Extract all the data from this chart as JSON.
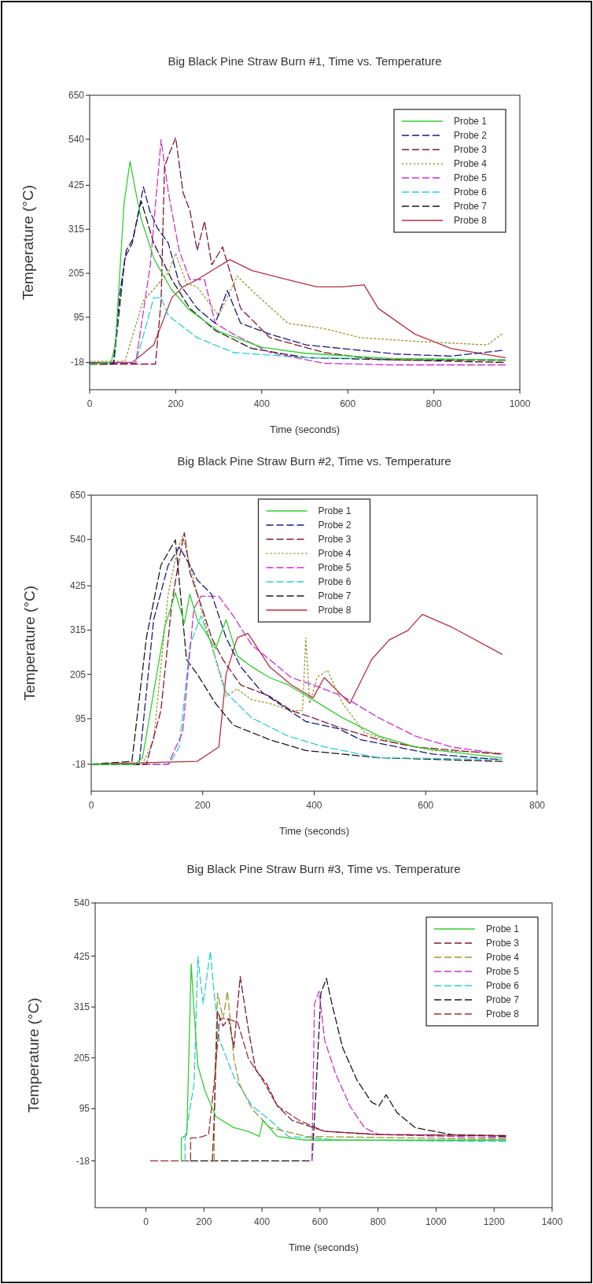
{
  "chart_data": [
    {
      "type": "line",
      "title": "Big Black Pine Straw Burn #1, Time vs. Temperature",
      "xlabel": "Time (seconds)",
      "ylabel": "Temperature (°C)",
      "xlim": [
        0,
        1000
      ],
      "ylim": [
        -86,
        650
      ],
      "xticks": [
        0,
        200,
        400,
        600,
        800,
        1000
      ],
      "yticks": [
        -18,
        95,
        205,
        315,
        425,
        540,
        650
      ],
      "legend": "top right",
      "series": [
        {
          "name": "Probe 1",
          "color": "#33cc33",
          "line_style": "solid",
          "x": [
            0,
            50,
            60,
            80,
            94,
            105,
            120,
            150,
            190,
            230,
            300,
            400,
            500,
            700,
            965
          ],
          "values": [
            -22,
            -18,
            30,
            380,
            485,
            420,
            340,
            240,
            165,
            115,
            60,
            20,
            5,
            -8,
            -12
          ]
        },
        {
          "name": "Probe 2",
          "color": "#1a1a80",
          "line_style": "dashed",
          "x": [
            0,
            56,
            82,
            99,
            125,
            140,
            158,
            183,
            208,
            250,
            292,
            320,
            351,
            419,
            503,
            587,
            714,
            840,
            958
          ],
          "values": [
            -20,
            -20,
            244,
            280,
            421,
            360,
            317,
            280,
            180,
            117,
            80,
            162,
            80,
            53,
            26,
            17,
            3,
            -2,
            12
          ]
        },
        {
          "name": "Probe 3",
          "color": "#801a33",
          "line_style": "dashed",
          "x": [
            0,
            153,
            166,
            174,
            183,
            200,
            217,
            233,
            250,
            267,
            284,
            309,
            334,
            351,
            419,
            545,
            671,
            966
          ],
          "values": [
            -22,
            -22,
            135,
            471,
            498,
            544,
            407,
            362,
            262,
            335,
            226,
            271,
            180,
            117,
            44,
            7,
            -11,
            -13
          ]
        },
        {
          "name": "Probe 4",
          "color": "#999933",
          "line_style": "dotted",
          "x": [
            0,
            82,
            124,
            183,
            200,
            225,
            250,
            300,
            343,
            377,
            461,
            545,
            629,
            756,
            924,
            958
          ],
          "values": [
            -15,
            -15,
            135,
            207,
            255,
            180,
            171,
            99,
            198,
            162,
            80,
            67,
            44,
            35,
            26,
            53
          ]
        },
        {
          "name": "Probe 5",
          "color": "#cc33cc",
          "line_style": "dashed",
          "x": [
            0,
            107,
            141,
            166,
            183,
            208,
            233,
            267,
            292,
            334,
            419,
            545,
            700,
            966
          ],
          "values": [
            -20,
            -20,
            226,
            539,
            407,
            262,
            189,
            189,
            80,
            53,
            7,
            -20,
            -24,
            -24
          ]
        },
        {
          "name": "Probe 6",
          "color": "#33cccc",
          "line_style": "dashed",
          "x": [
            0,
            107,
            149,
            166,
            183,
            250,
            334,
            503,
            966
          ],
          "values": [
            -20,
            -20,
            144,
            144,
            99,
            44,
            7,
            -6,
            -11
          ]
        },
        {
          "name": "Probe 7",
          "color": "#1a1a1a",
          "line_style": "dashed",
          "x": [
            0,
            55,
            70,
            85,
            100,
            120,
            149,
            191,
            233,
            292,
            377,
            503,
            961
          ],
          "values": [
            -22,
            -22,
            153,
            262,
            289,
            385,
            280,
            189,
            117,
            62,
            17,
            -6,
            -18
          ]
        },
        {
          "name": "Probe 8",
          "color": "#b33040",
          "line_style": "solid",
          "x": [
            0,
            99,
            149,
            191,
            217,
            250,
            292,
            326,
            377,
            461,
            528,
            587,
            638,
            671,
            756,
            840,
            966
          ],
          "values": [
            -18,
            -18,
            26,
            144,
            171,
            189,
            217,
            239,
            212,
            189,
            171,
            171,
            176,
            117,
            53,
            17,
            -6
          ]
        }
      ]
    },
    {
      "type": "line",
      "title": "Big Black Pine Straw Burn #2, Time vs. Temperature",
      "xlabel": "Time (seconds)",
      "ylabel": "Temperature (°C)",
      "xlim": [
        0,
        800
      ],
      "ylim": [
        -85,
        650
      ],
      "xticks": [
        0,
        200,
        400,
        600,
        800
      ],
      "yticks": [
        -18,
        95,
        205,
        315,
        425,
        540,
        650
      ],
      "legend": "top",
      "series": [
        {
          "name": "Probe 1",
          "color": "#33cc33",
          "line_style": "solid",
          "x": [
            0,
            79,
            92,
            112,
            132,
            151,
            167,
            177,
            190,
            203,
            223,
            242,
            262,
            288,
            320,
            353,
            398,
            451,
            516,
            581,
            646,
            737
          ],
          "values": [
            -18,
            -18,
            -2,
            160,
            323,
            408,
            332,
            404,
            341,
            314,
            269,
            341,
            251,
            224,
            197,
            179,
            142,
            97,
            52,
            25,
            12,
            -2
          ]
        },
        {
          "name": "Probe 2",
          "color": "#1a1a80",
          "line_style": "dashed",
          "x": [
            0,
            86,
            112,
            138,
            158,
            177,
            190,
            216,
            242,
            268,
            307,
            346,
            385,
            444,
            483,
            548,
            613,
            729
          ],
          "values": [
            -18,
            -18,
            341,
            476,
            521,
            476,
            440,
            404,
            296,
            224,
            160,
            124,
            88,
            70,
            43,
            25,
            7,
            -6
          ]
        },
        {
          "name": "Probe 3",
          "color": "#801a33",
          "line_style": "dashed",
          "x": [
            0,
            99,
            125,
            145,
            158,
            167,
            177,
            197,
            216,
            236,
            268,
            320,
            359,
            398,
            451,
            516,
            581,
            732
          ],
          "values": [
            -18,
            -18,
            115,
            386,
            494,
            557,
            458,
            377,
            296,
            242,
            179,
            151,
            115,
            97,
            70,
            43,
            25,
            7
          ]
        },
        {
          "name": "Probe 4",
          "color": "#999933",
          "line_style": "dotted",
          "x": [
            0,
            92,
            112,
            138,
            154,
            164,
            177,
            197,
            223,
            242,
            262,
            288,
            320,
            359,
            379,
            385,
            392,
            405,
            424,
            451,
            490,
            548,
            613,
            733
          ],
          "values": [
            -18,
            -18,
            43,
            404,
            512,
            548,
            476,
            368,
            242,
            151,
            169,
            142,
            133,
            115,
            115,
            296,
            133,
            197,
            215,
            133,
            61,
            34,
            16,
            10
          ]
        },
        {
          "name": "Probe 5",
          "color": "#cc33cc",
          "line_style": "dashed",
          "x": [
            0,
            138,
            164,
            184,
            197,
            229,
            255,
            288,
            320,
            359,
            398,
            451,
            516,
            581,
            646,
            737
          ],
          "values": [
            -18,
            -18,
            61,
            368,
            399,
            399,
            350,
            278,
            242,
            197,
            179,
            151,
            97,
            52,
            25,
            7
          ]
        },
        {
          "name": "Probe 6",
          "color": "#33cccc",
          "line_style": "dashed",
          "x": [
            0,
            140,
            158,
            177,
            197,
            216,
            242,
            288,
            353,
            418,
            516,
            737
          ],
          "values": [
            -18,
            -18,
            25,
            278,
            350,
            278,
            160,
            97,
            52,
            25,
            -2,
            -6
          ]
        },
        {
          "name": "Probe 7",
          "color": "#1a1a1a",
          "line_style": "dashed",
          "x": [
            0,
            73,
            99,
            125,
            151,
            171,
            190,
            223,
            255,
            320,
            385,
            451,
            516,
            737
          ],
          "values": [
            -18,
            -11,
            296,
            476,
            539,
            242,
            206,
            133,
            79,
            43,
            16,
            7,
            -2,
            -11
          ]
        },
        {
          "name": "Probe 8",
          "color": "#b33040",
          "line_style": "solid",
          "x": [
            0,
            190,
            229,
            242,
            262,
            281,
            320,
            359,
            398,
            418,
            464,
            503,
            535,
            568,
            594,
            646,
            737
          ],
          "values": [
            -18,
            -11,
            25,
            206,
            296,
            307,
            224,
            179,
            147,
            197,
            133,
            242,
            291,
            314,
            354,
            323,
            255
          ]
        }
      ]
    },
    {
      "type": "line",
      "title": "Big Black Pine Straw Burn #3, Time vs. Temperature",
      "xlabel": "Time (seconds)",
      "ylabel": "Temperature (°C)",
      "xlim": [
        -175,
        1400
      ],
      "ylim": [
        -119,
        540
      ],
      "xticks": [
        0,
        200,
        400,
        600,
        800,
        1000,
        1200,
        1400
      ],
      "yticks": [
        -18,
        95,
        205,
        315,
        425,
        540
      ],
      "legend": "top right",
      "series": [
        {
          "name": "Probe 1",
          "color": "#33cc33",
          "line_style": "solid",
          "x": [
            122,
            122,
            141,
            156,
            166,
            179,
            204,
            241,
            303,
            353,
            391,
            403,
            453,
            553,
            803,
            1240
          ],
          "values": [
            -18,
            31,
            39,
            408,
            306,
            188,
            133,
            78,
            54,
            46,
            35,
            70,
            35,
            27,
            27,
            27
          ]
        },
        {
          "name": "Probe 3",
          "color": "#801a33",
          "line_style": "dashed",
          "x": [
            229,
            235,
            247,
            266,
            285,
            303,
            325,
            353,
            378,
            416,
            453,
            503,
            616,
            803,
            1240
          ],
          "values": [
            -18,
            70,
            306,
            274,
            290,
            227,
            381,
            267,
            180,
            149,
            101,
            70,
            46,
            39,
            37
          ]
        },
        {
          "name": "Probe 4",
          "color": "#999933",
          "line_style": "dashed",
          "x": [
            235,
            238,
            247,
            266,
            281,
            303,
            322,
            366,
            428,
            553,
            1240
          ],
          "values": [
            -18,
            180,
            345,
            290,
            349,
            204,
            149,
            94,
            54,
            35,
            29
          ]
        },
        {
          "name": "Probe 5",
          "color": "#cc33cc",
          "line_style": "dashed",
          "x": [
            572,
            581,
            597,
            616,
            653,
            703,
            753,
            803,
            1240
          ],
          "values": [
            -18,
            322,
            349,
            243,
            172,
            101,
            54,
            39,
            32
          ]
        },
        {
          "name": "Probe 6",
          "color": "#33cccc",
          "line_style": "dashed",
          "x": [
            135,
            135,
            166,
            179,
            197,
            222,
            235,
            254,
            303,
            366,
            428,
            491,
            678,
            1240
          ],
          "values": [
            -18,
            31,
            149,
            424,
            322,
            436,
            345,
            243,
            164,
            101,
            70,
            35,
            27,
            24
          ]
        },
        {
          "name": "Probe 7",
          "color": "#1a1a1a",
          "line_style": "dashed",
          "x": [
            154,
            572,
            581,
            603,
            622,
            641,
            678,
            728,
            778,
            803,
            828,
            866,
            928,
            1053,
            1240
          ],
          "values": [
            -18,
            -18,
            70,
            345,
            377,
            322,
            227,
            156,
            109,
            101,
            125,
            86,
            54,
            39,
            35
          ]
        },
        {
          "name": "Probe 8",
          "color": "#993333",
          "line_style": "dashed",
          "x": [
            16,
            154,
            154,
            179,
            216,
            235,
            254,
            278,
            316,
            353,
            403,
            453,
            528,
            616,
            803,
            1234
          ],
          "values": [
            -18,
            -18,
            32,
            32,
            39,
            149,
            290,
            290,
            282,
            204,
            156,
            101,
            70,
            46,
            39,
            37
          ]
        }
      ]
    }
  ]
}
